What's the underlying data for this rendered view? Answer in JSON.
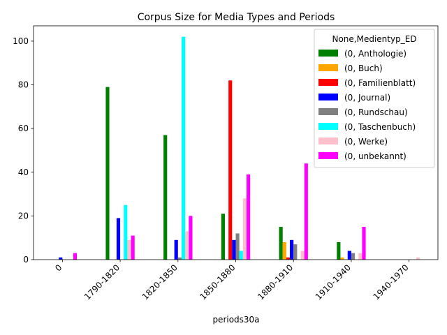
{
  "chart_data": {
    "type": "bar",
    "title": "Corpus Size for Media Types and Periods",
    "xlabel": "periods30a",
    "ylabel": "",
    "ylim": [
      0,
      107
    ],
    "yticks": [
      0,
      20,
      40,
      60,
      80,
      100
    ],
    "categories": [
      "0",
      "1790-1820",
      "1820-1850",
      "1850-1880",
      "1880-1910",
      "1910-1940",
      "1940-1970"
    ],
    "legend_title": "None,Medientyp_ED",
    "legend_position": "upper right",
    "grid": false,
    "series": [
      {
        "name": "(0, Anthologie)",
        "color": "#008000",
        "values": [
          0,
          79,
          57,
          21,
          15,
          8,
          0
        ]
      },
      {
        "name": "(0, Buch)",
        "color": "#ffa500",
        "values": [
          0,
          0,
          0,
          0,
          8,
          1,
          0
        ]
      },
      {
        "name": "(0, Familienblatt)",
        "color": "#ff0000",
        "values": [
          0,
          0,
          0,
          82,
          1,
          0,
          0
        ]
      },
      {
        "name": "(0, Journal)",
        "color": "#0000ff",
        "values": [
          1,
          19,
          9,
          9,
          9,
          4,
          0
        ]
      },
      {
        "name": "(0, Rundschau)",
        "color": "#808080",
        "values": [
          0,
          0,
          1,
          12,
          7,
          3,
          0
        ]
      },
      {
        "name": "(0, Taschenbuch)",
        "color": "#00ffff",
        "values": [
          0,
          25,
          102,
          4,
          0,
          0,
          0
        ]
      },
      {
        "name": "(0, Werke)",
        "color": "#ffc0cb",
        "values": [
          0,
          9,
          13,
          28,
          4,
          3,
          1
        ]
      },
      {
        "name": "(0, unbekannt)",
        "color": "#ff00ff",
        "values": [
          3,
          11,
          20,
          39,
          44,
          15,
          0
        ]
      }
    ]
  }
}
